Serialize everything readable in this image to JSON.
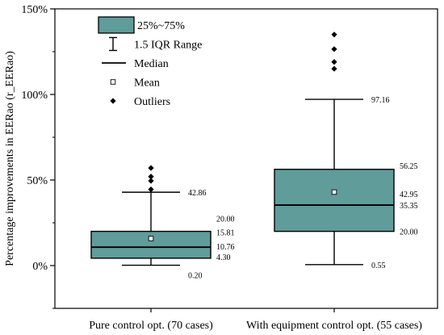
{
  "chart_data": {
    "type": "box",
    "ylabel": "Percentage improvements in EERao (r_EERao)",
    "ylim": [
      -25,
      150
    ],
    "yticks": [
      0,
      50,
      100,
      150
    ],
    "ytick_labels": [
      "0%",
      "50%",
      "100%",
      "150%"
    ],
    "categories": [
      "Pure control opt. (70 cases)",
      "With equipment control opt. (55 cases)"
    ],
    "boxes": [
      {
        "category": "Pure control opt. (70 cases)",
        "q1": 4.3,
        "median": 10.76,
        "q3": 20.0,
        "mean": 15.81,
        "whisker_low": 0.2,
        "whisker_high": 42.86,
        "outliers": [
          44.5,
          49.5,
          52.0,
          57.0
        ],
        "labels": {
          "whisker_high": "42.86",
          "q3": "20.00",
          "mean": "15.81",
          "median": "10.76",
          "q1": "4.30",
          "whisker_low": "0.20"
        }
      },
      {
        "category": "With equipment control opt. (55 cases)",
        "q1": 20.0,
        "median": 35.35,
        "q3": 56.25,
        "mean": 42.95,
        "whisker_low": 0.55,
        "whisker_high": 97.16,
        "outliers": [
          115.0,
          119.0,
          126.5,
          135.0
        ],
        "labels": {
          "whisker_high": "97.16",
          "q3": "56.25",
          "mean": "42.95",
          "median": "35.35",
          "q1": "20.00",
          "whisker_low": "0.55"
        }
      }
    ],
    "legend": {
      "placement": "top-left",
      "items": [
        {
          "symbol": "box",
          "label": "25%~75%"
        },
        {
          "symbol": "whisker",
          "label": "1.5 IQR Range"
        },
        {
          "symbol": "median-line",
          "label": "Median"
        },
        {
          "symbol": "mean-square",
          "label": "Mean"
        },
        {
          "symbol": "diamond",
          "label": "Outliers"
        }
      ]
    },
    "colors": {
      "box_fill": "#5f9c9a",
      "line": "#000000",
      "mean_fill": "#ffffff"
    },
    "grid": false
  }
}
